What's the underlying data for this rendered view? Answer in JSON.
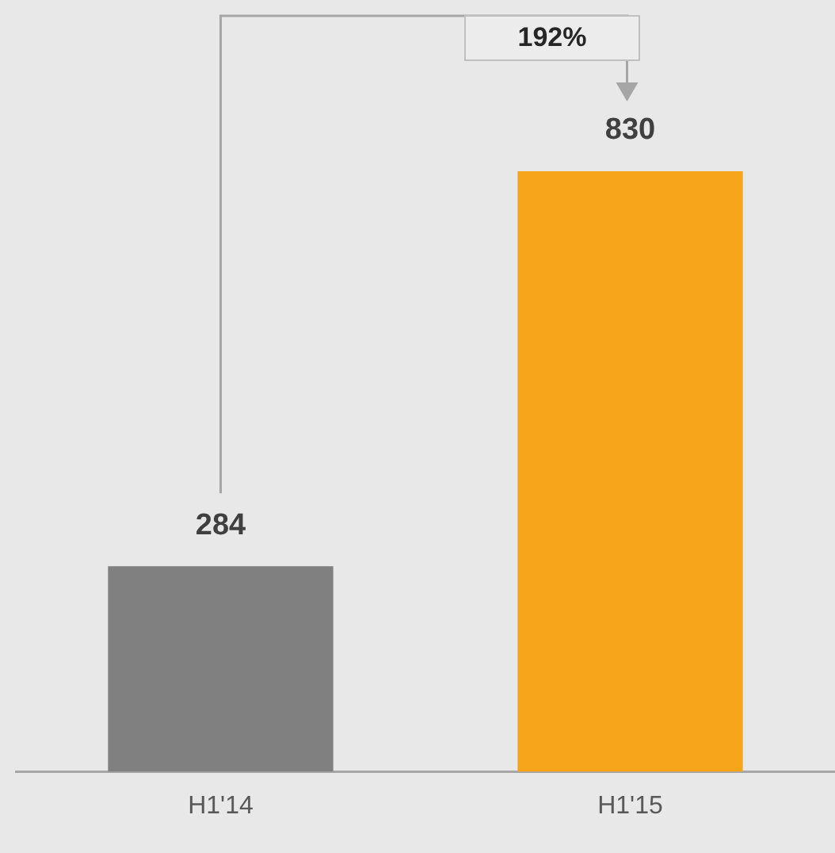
{
  "chart_data": {
    "type": "bar",
    "categories": [
      "H1'14",
      "H1'15"
    ],
    "values": [
      284,
      830
    ],
    "colors": [
      "#808080",
      "#f7a61c"
    ],
    "data_labels": true,
    "annotations": [
      "192%"
    ]
  }
}
